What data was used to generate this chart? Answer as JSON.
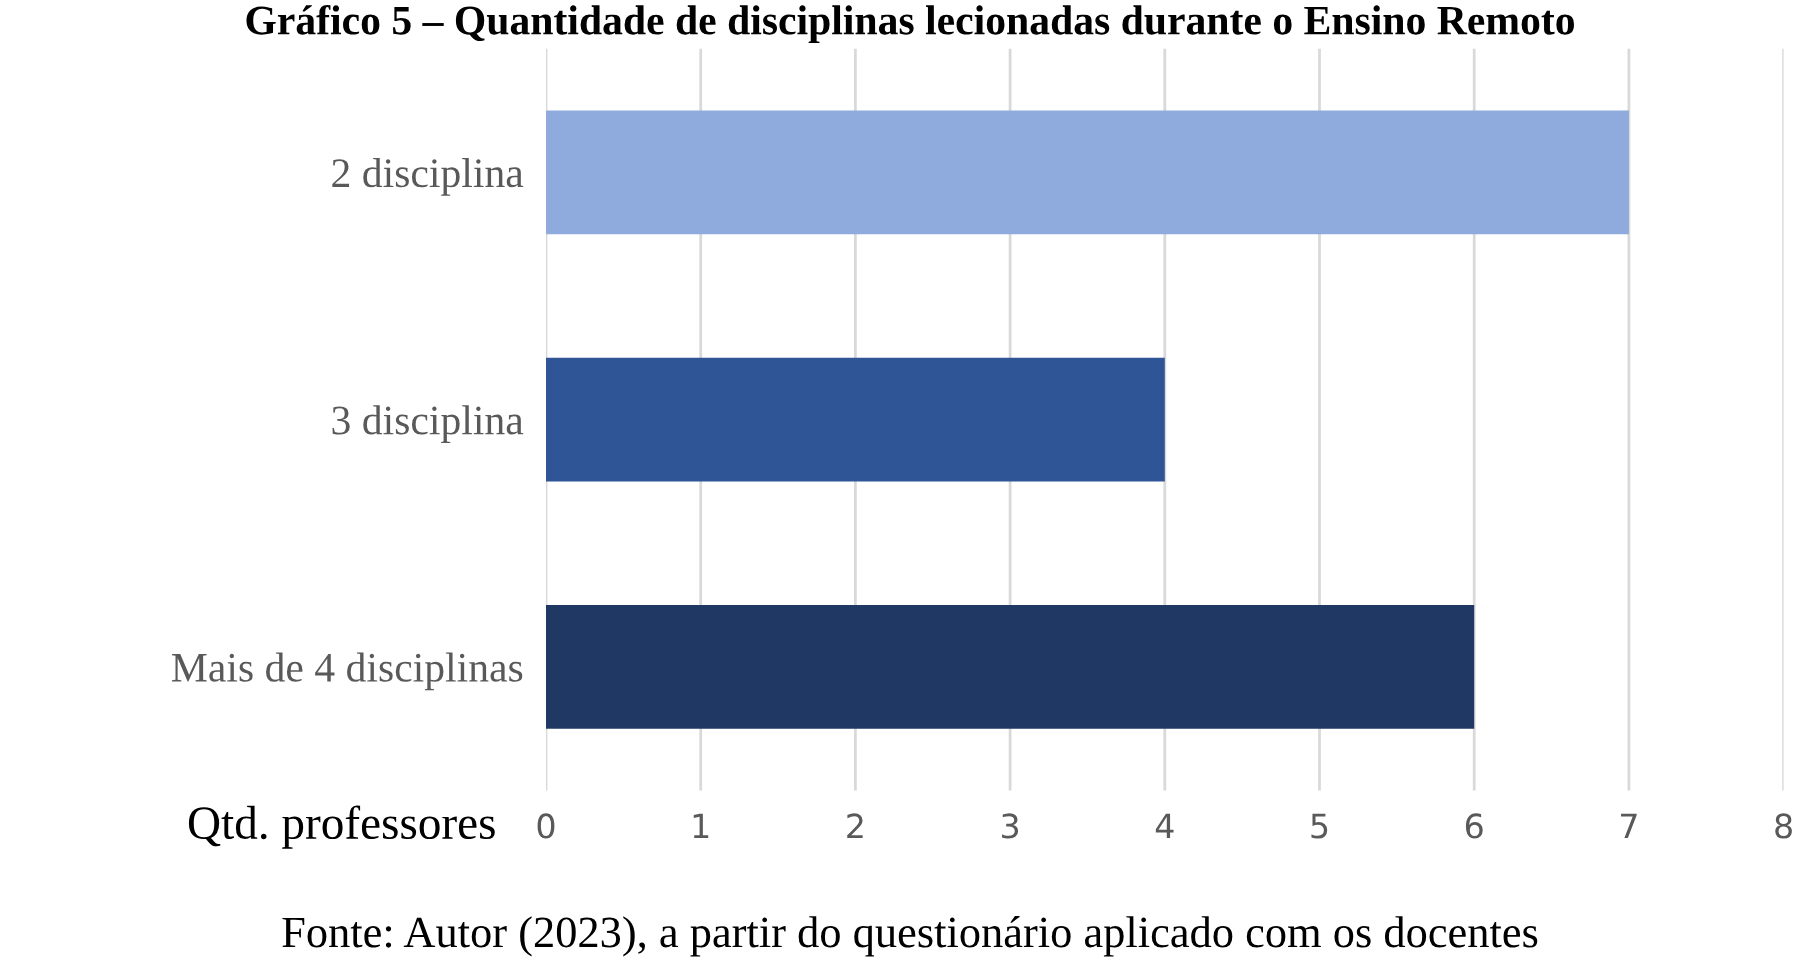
{
  "chart_data": {
    "type": "bar",
    "orientation": "horizontal",
    "title": "Gráfico 5 – Quantidade de disciplinas lecionadas durante o Ensino Remoto",
    "categories": [
      "2 disciplina",
      "3 disciplina",
      "Mais de 4 disciplinas"
    ],
    "values": [
      7,
      4,
      6
    ],
    "colors": [
      "#8faadc",
      "#2f5597",
      "#203864"
    ],
    "xlabel": "Qtd. professores",
    "xlim": [
      0,
      8
    ],
    "xticks": [
      0,
      1,
      2,
      3,
      4,
      5,
      6,
      7,
      8
    ],
    "grid": "x",
    "annotations": [
      "Fonte: Autor (2023), a partir do questionário aplicado com os docentes"
    ]
  }
}
